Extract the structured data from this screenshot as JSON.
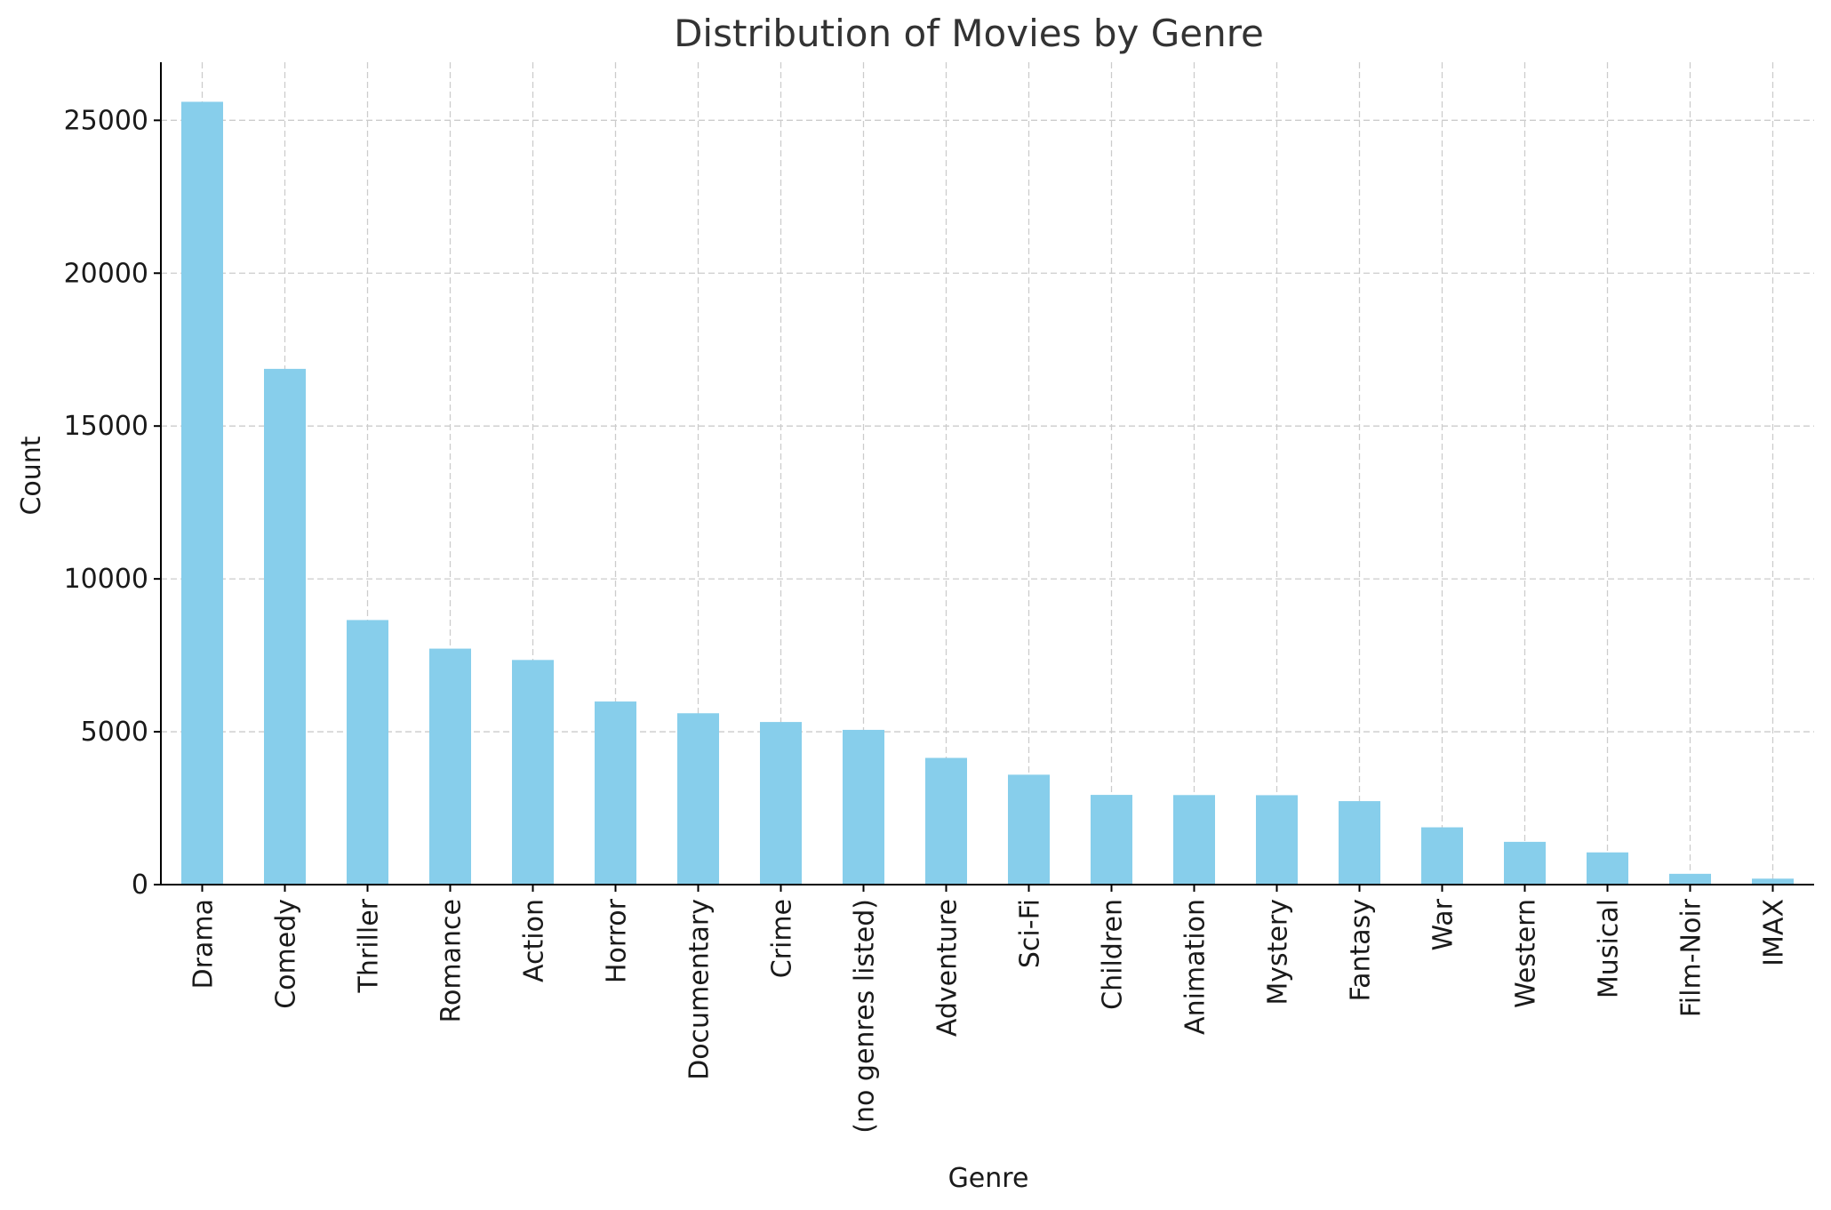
{
  "chart_data": {
    "type": "bar",
    "title": "Distribution of Movies by Genre",
    "xlabel": "Genre",
    "ylabel": "Count",
    "categories": [
      "Drama",
      "Comedy",
      "Thriller",
      "Romance",
      "Action",
      "Horror",
      "Documentary",
      "Crime",
      "(no genres listed)",
      "Adventure",
      "Sci-Fi",
      "Children",
      "Animation",
      "Mystery",
      "Fantasy",
      "War",
      "Western",
      "Musical",
      "Film-Noir",
      "IMAX"
    ],
    "values": [
      25606,
      16870,
      8654,
      7719,
      7348,
      5989,
      5605,
      5319,
      5062,
      4145,
      3595,
      2935,
      2929,
      2925,
      2731,
      1874,
      1399,
      1054,
      353,
      195
    ],
    "ylim": [
      0,
      26900
    ],
    "yticks": [
      0,
      5000,
      10000,
      15000,
      20000,
      25000
    ],
    "grid": true,
    "bar_color": "#87ceeb",
    "grid_color": "#cccccc",
    "axis_color": "#000000"
  }
}
